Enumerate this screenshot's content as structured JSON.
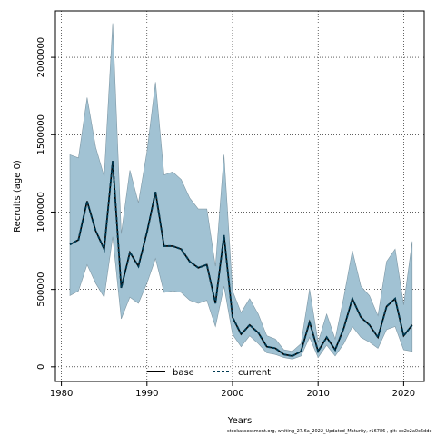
{
  "chart_data": {
    "type": "line",
    "xlabel": "Years",
    "ylabel": "Recruits (age 0)",
    "xlim": [
      1979.3,
      2022.4
    ],
    "ylim": [
      -95000,
      2300000
    ],
    "x_ticks": [
      1980,
      1990,
      2000,
      2010,
      2020
    ],
    "y_ticks": [
      0,
      500000,
      1000000,
      1500000,
      2000000
    ],
    "grid": "dotted",
    "legend_position": "bottom-center",
    "x": [
      1981,
      1982,
      1983,
      1984,
      1985,
      1986,
      1987,
      1988,
      1989,
      1990,
      1991,
      1992,
      1993,
      1994,
      1995,
      1996,
      1997,
      1998,
      1999,
      2000,
      2001,
      2002,
      2003,
      2004,
      2005,
      2006,
      2007,
      2008,
      2009,
      2010,
      2011,
      2012,
      2013,
      2014,
      2015,
      2016,
      2017,
      2018,
      2019,
      2020,
      2021
    ],
    "band_upper": [
      1370000,
      1350000,
      1740000,
      1420000,
      1230000,
      2220000,
      860000,
      1270000,
      1060000,
      1390000,
      1840000,
      1240000,
      1260000,
      1210000,
      1090000,
      1020000,
      1020000,
      650000,
      1370000,
      490000,
      350000,
      440000,
      340000,
      200000,
      180000,
      110000,
      100000,
      150000,
      500000,
      160000,
      340000,
      180000,
      450000,
      750000,
      520000,
      460000,
      330000,
      680000,
      760000,
      400000,
      810000
    ],
    "band_lower": [
      460000,
      490000,
      660000,
      540000,
      450000,
      840000,
      310000,
      450000,
      410000,
      540000,
      700000,
      480000,
      490000,
      480000,
      430000,
      410000,
      430000,
      260000,
      520000,
      210000,
      130000,
      200000,
      150000,
      90000,
      80000,
      60000,
      50000,
      70000,
      190000,
      60000,
      140000,
      70000,
      150000,
      260000,
      190000,
      160000,
      120000,
      240000,
      260000,
      110000,
      100000
    ],
    "series": [
      {
        "name": "base",
        "values": [
          790000,
          820000,
          1070000,
          880000,
          760000,
          1330000,
          510000,
          740000,
          650000,
          870000,
          1130000,
          780000,
          780000,
          760000,
          680000,
          640000,
          660000,
          410000,
          850000,
          320000,
          210000,
          270000,
          220000,
          130000,
          120000,
          80000,
          70000,
          100000,
          290000,
          100000,
          190000,
          110000,
          250000,
          440000,
          320000,
          270000,
          190000,
          390000,
          440000,
          200000,
          270000
        ]
      },
      {
        "name": "current",
        "values": [
          790000,
          820000,
          1070000,
          880000,
          760000,
          1330000,
          510000,
          740000,
          650000,
          870000,
          1130000,
          780000,
          780000,
          760000,
          680000,
          640000,
          660000,
          410000,
          850000,
          320000,
          210000,
          270000,
          220000,
          130000,
          120000,
          80000,
          70000,
          100000,
          290000,
          100000,
          190000,
          110000,
          250000,
          440000,
          320000,
          270000,
          190000,
          390000,
          440000,
          200000,
          270000
        ]
      }
    ],
    "colors": {
      "band_fill": "#a1c2d3",
      "band_stroke": "#7f98a5",
      "base": "#000000",
      "current": "#003a52"
    }
  },
  "footer": "stockassessment.org, whiting_27.6a_2022_Updated_Maturity, r16786 , git: ec2c2a0c6dde"
}
